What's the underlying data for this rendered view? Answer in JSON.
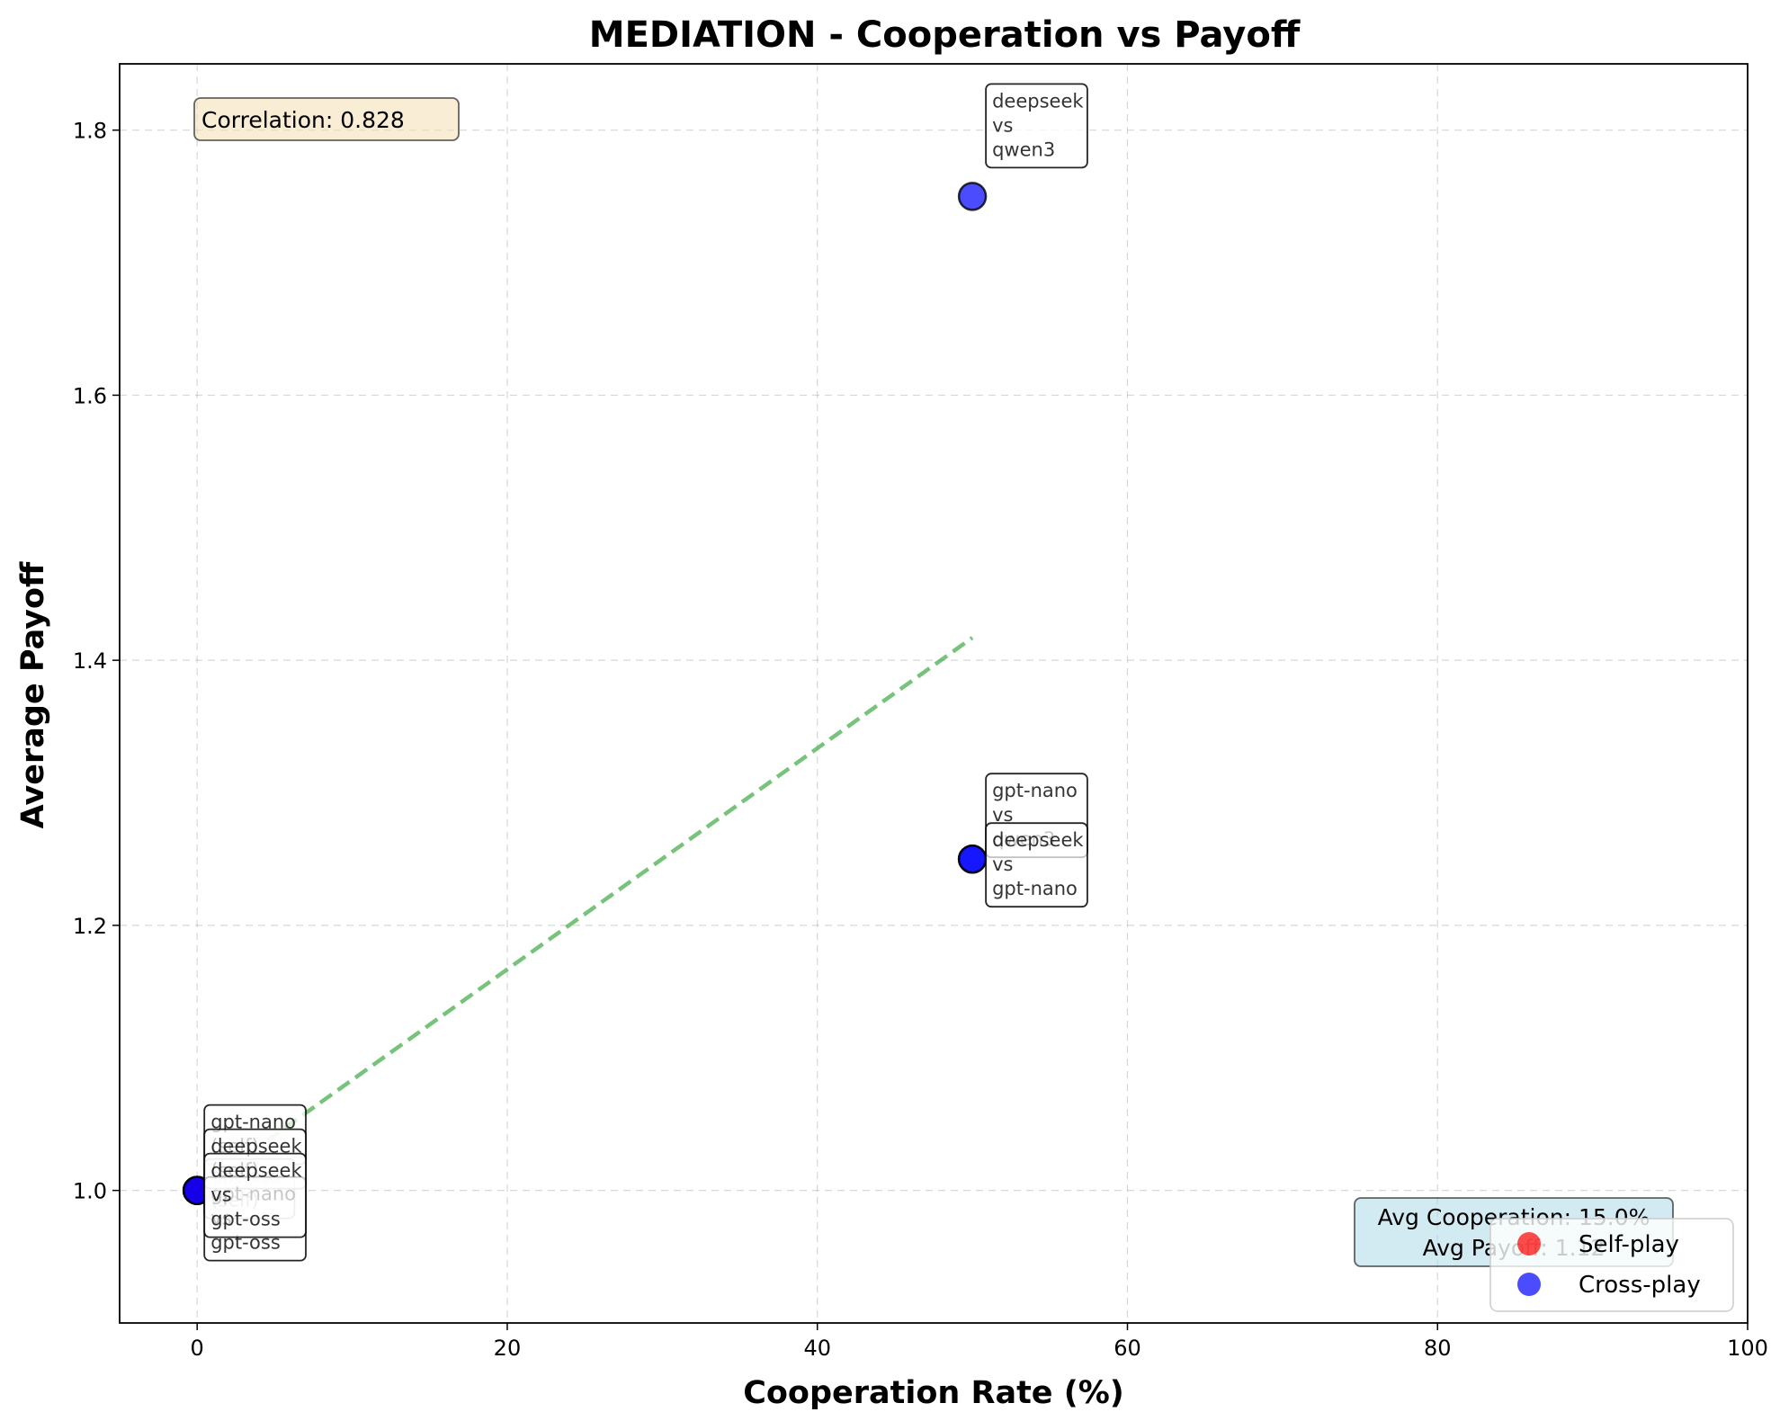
{
  "chart_data": {
    "type": "scatter",
    "title": "MEDIATION - Cooperation vs Payoff",
    "xlabel": "Cooperation Rate (%)",
    "ylabel": "Average Payoff",
    "xlim": [
      -5,
      100
    ],
    "ylim": [
      0.9,
      1.85
    ],
    "xticks": [
      0,
      20,
      40,
      60,
      80,
      100
    ],
    "yticks": [
      1.0,
      1.2,
      1.4,
      1.6,
      1.8
    ],
    "ytick_labels": [
      "1.0",
      "1.2",
      "1.4",
      "1.6",
      "1.8"
    ],
    "grid": true,
    "legend_position": "lower right",
    "series": [
      {
        "name": "Self-play",
        "color": "#ff0000",
        "points": [
          {
            "x": 0,
            "y": 1.0,
            "label": [
              "gpt-nano",
              "(self)"
            ]
          },
          {
            "x": 0,
            "y": 1.0,
            "label": [
              "gpt-oss",
              "(self)"
            ]
          },
          {
            "x": 0,
            "y": 1.0,
            "label": [
              "deepseek",
              "(self)"
            ]
          }
        ]
      },
      {
        "name": "Cross-play",
        "color": "#0000ff",
        "points": [
          {
            "x": 50,
            "y": 1.75,
            "label": [
              "deepseek",
              "vs",
              "qwen3"
            ]
          },
          {
            "x": 50,
            "y": 1.25,
            "label": [
              "gpt-nano",
              "vs",
              "qwen3"
            ]
          },
          {
            "x": 50,
            "y": 1.25,
            "label": [
              "deepseek",
              "vs",
              "gpt-nano"
            ]
          },
          {
            "x": 0,
            "y": 1.0,
            "label": [
              "gpt-nano",
              "vs",
              "gpt-oss"
            ]
          },
          {
            "x": 0,
            "y": 1.0,
            "label": [
              "deepseek",
              "vs",
              "gpt-oss"
            ]
          }
        ]
      }
    ],
    "trendline": {
      "color": "#4caf50",
      "from": [
        0,
        1.0
      ],
      "to": [
        50,
        1.417
      ]
    },
    "annotations": {
      "correlation": "Correlation: 0.828",
      "avg_cooperation": "Avg Cooperation: 15.0%",
      "avg_payoff": "Avg Payoff: 1.12"
    }
  }
}
